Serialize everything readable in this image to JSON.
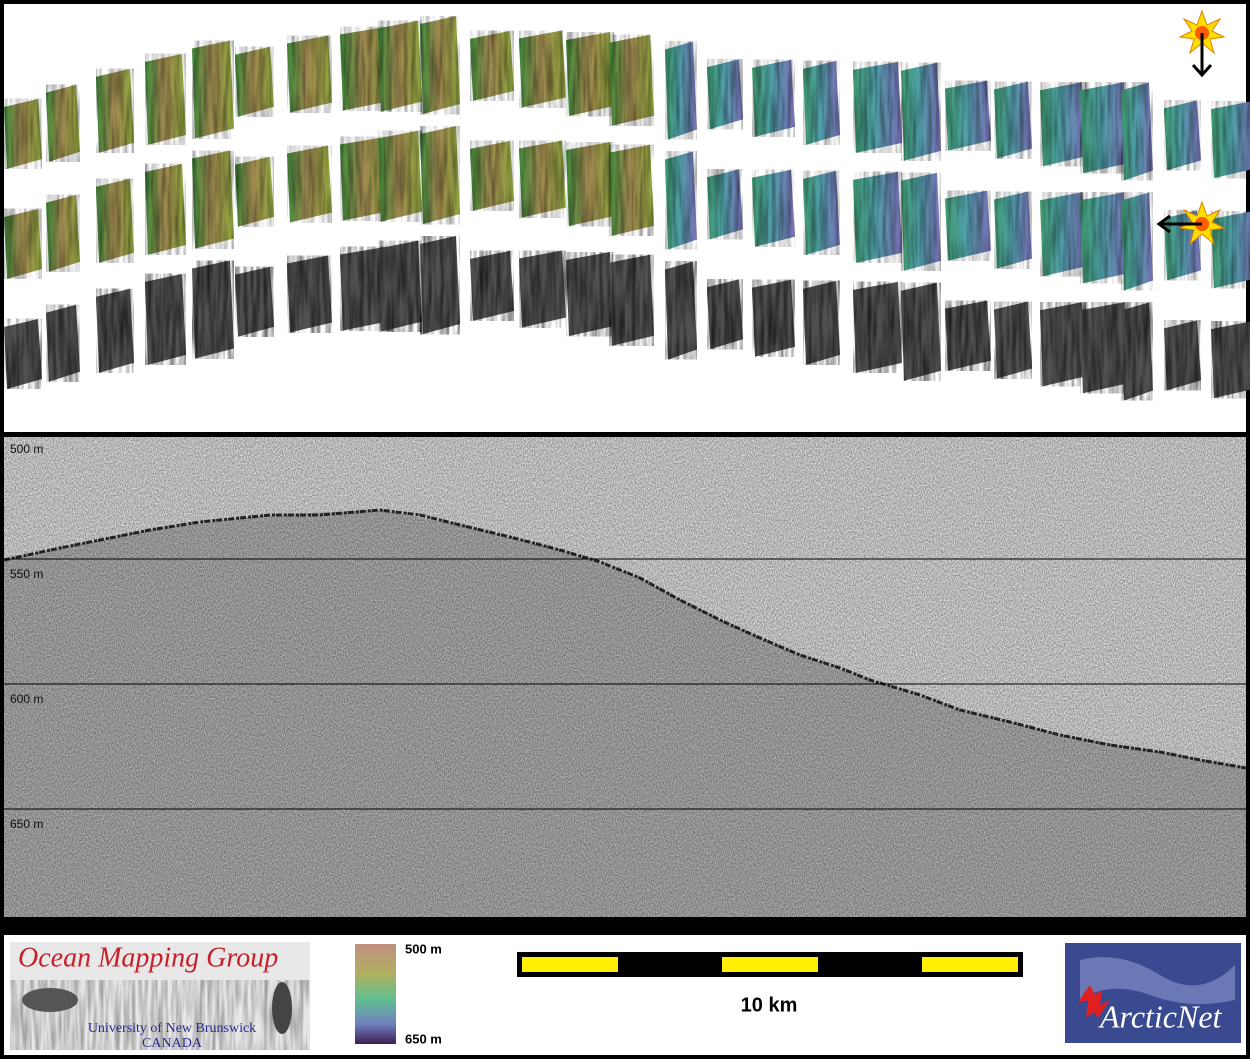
{
  "profile": {
    "depth_labels": [
      "500 m",
      "550 m",
      "600 m",
      "650 m"
    ]
  },
  "footer": {
    "logo_left": {
      "title": "Ocean Mapping Group",
      "line1": "University of New Brunswick",
      "line2": "CANADA"
    },
    "colorbar": {
      "top_label": "500 m",
      "bottom_label": "650 m"
    },
    "scale_bar": {
      "label": "10 km"
    },
    "logo_right": {
      "title": "ArcticNet"
    }
  }
}
